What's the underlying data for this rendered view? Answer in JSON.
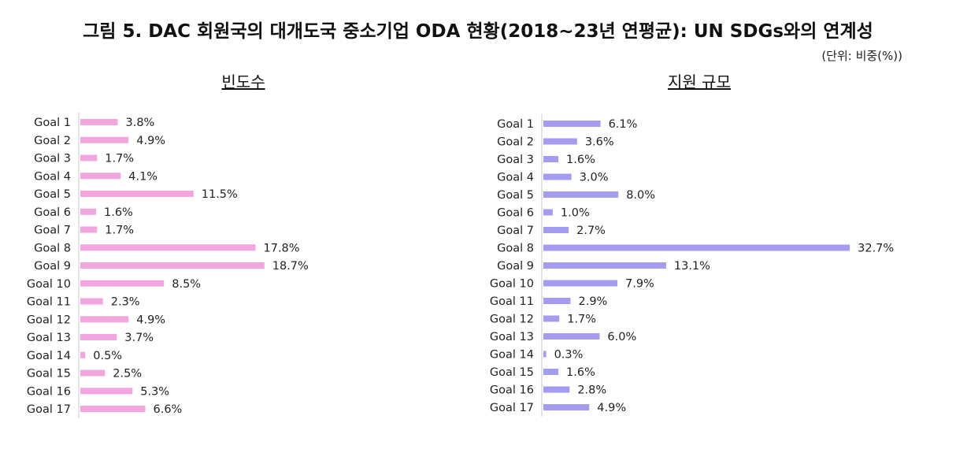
{
  "title": "그림 5. DAC 회원국의 대개도국 중소기업 ODA 현황(2018~23년 연평균): UN SDGs와의 연계성",
  "unit": "(단위: 비중(%))",
  "colors": {
    "left_bar": "#f2a5de",
    "right_bar": "#a49cf0"
  },
  "chart_data": [
    {
      "type": "bar",
      "orientation": "horizontal",
      "title": "빈도수",
      "categories": [
        "Goal 1",
        "Goal 2",
        "Goal 3",
        "Goal 4",
        "Goal 5",
        "Goal 6",
        "Goal 7",
        "Goal 8",
        "Goal 9",
        "Goal 10",
        "Goal 11",
        "Goal 12",
        "Goal 13",
        "Goal 14",
        "Goal 15",
        "Goal 16",
        "Goal 17"
      ],
      "values": [
        3.8,
        4.9,
        1.7,
        4.1,
        11.5,
        1.6,
        1.7,
        17.8,
        18.7,
        8.5,
        2.3,
        4.9,
        3.7,
        0.5,
        2.5,
        5.3,
        6.6
      ],
      "value_labels": [
        "3.8%",
        "4.9%",
        "1.7%",
        "4.1%",
        "11.5%",
        "1.6%",
        "1.7%",
        "17.8%",
        "18.7%",
        "8.5%",
        "2.3%",
        "4.9%",
        "3.7%",
        "0.5%",
        "2.5%",
        "5.3%",
        "6.6%"
      ],
      "xlim": [
        0,
        32.7
      ]
    },
    {
      "type": "bar",
      "orientation": "horizontal",
      "title": "지원 규모",
      "categories": [
        "Goal 1",
        "Goal 2",
        "Goal 3",
        "Goal 4",
        "Goal 5",
        "Goal 6",
        "Goal 7",
        "Goal 8",
        "Goal 9",
        "Goal 10",
        "Goal 11",
        "Goal 12",
        "Goal 13",
        "Goal 14",
        "Goal 15",
        "Goal 16",
        "Goal 17"
      ],
      "values": [
        6.1,
        3.6,
        1.6,
        3.0,
        8.0,
        1.0,
        2.7,
        32.7,
        13.1,
        7.9,
        2.9,
        1.7,
        6.0,
        0.3,
        1.6,
        2.8,
        4.9
      ],
      "value_labels": [
        "6.1%",
        "3.6%",
        "1.6%",
        "3.0%",
        "8.0%",
        "1.0%",
        "2.7%",
        "32.7%",
        "13.1%",
        "7.9%",
        "2.9%",
        "1.7%",
        "6.0%",
        "0.3%",
        "1.6%",
        "2.8%",
        "4.9%"
      ],
      "xlim": [
        0,
        32.7
      ]
    }
  ]
}
